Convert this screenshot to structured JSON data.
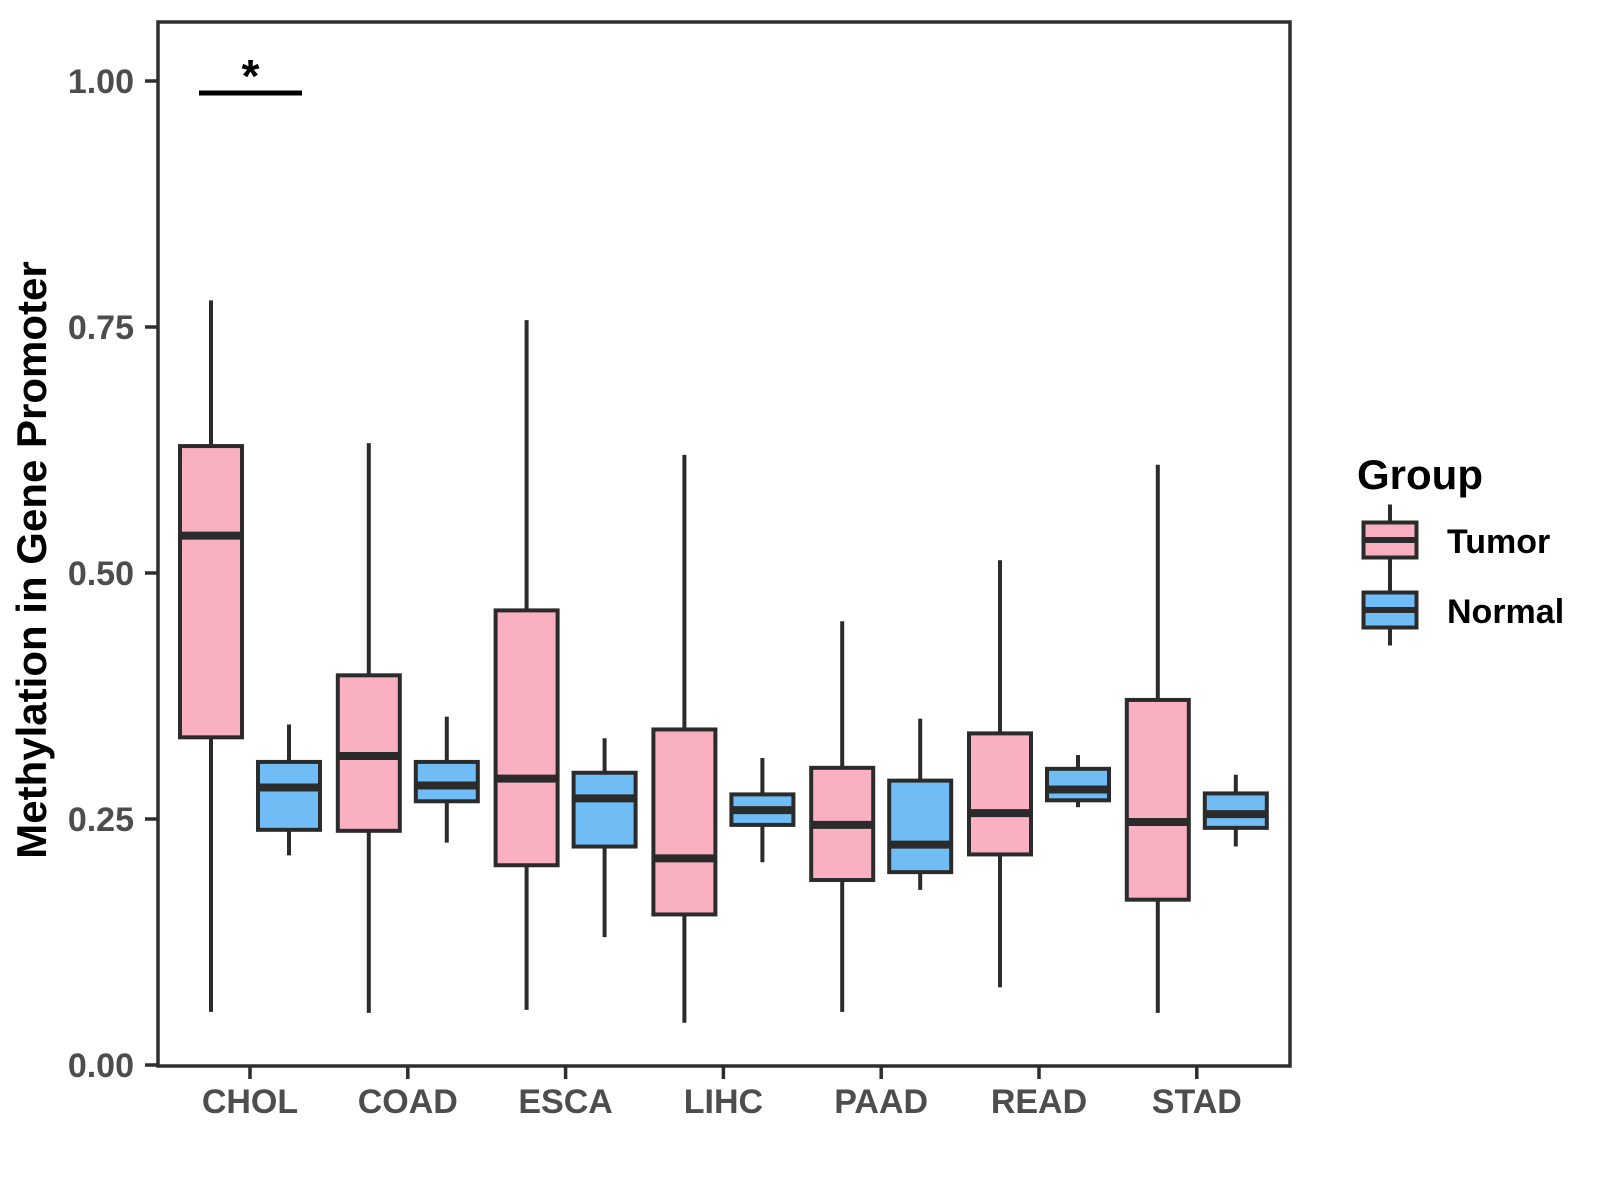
{
  "figure": {
    "background": "#FFFFFF",
    "y_axis": {
      "title": "Methylation in Gene Promoter",
      "tick_labels": [
        "0.00",
        "0.25",
        "0.50",
        "0.75",
        "1.00"
      ],
      "tick_values": [
        0,
        0.25,
        0.5,
        0.75,
        1.0
      ]
    },
    "x_axis": {
      "categories": [
        "CHOL",
        "COAD",
        "ESCA",
        "LIHC",
        "PAAD",
        "READ",
        "STAD"
      ]
    },
    "legend": {
      "title": "Group",
      "items": [
        {
          "label": "Tumor",
          "color": "#F9B1C2"
        },
        {
          "label": "Normal",
          "color": "#6FBDF4"
        }
      ]
    },
    "annotation": {
      "label": "*",
      "category": "CHOL"
    }
  },
  "chart_data": {
    "type": "boxplot",
    "title": "",
    "xlabel": "",
    "ylabel": "Methylation in Gene Promoter",
    "categories": [
      "CHOL",
      "COAD",
      "ESCA",
      "LIHC",
      "PAAD",
      "READ",
      "STAD"
    ],
    "ylim": [
      0,
      1.06
    ],
    "yticks": [
      0,
      0.25,
      0.5,
      0.75,
      1.0
    ],
    "ytick_labels": [
      "0.00",
      "0.25",
      "0.50",
      "0.75",
      "1.00"
    ],
    "grid": false,
    "legend_position": "right",
    "legend_title": "Group",
    "series": [
      {
        "name": "Tumor",
        "color": "#F9B1C2",
        "boxes": [
          {
            "category": "CHOL",
            "whisker_low": 0.054,
            "q1": 0.333,
            "median": 0.538,
            "q3": 0.629,
            "whisker_high": 0.777
          },
          {
            "category": "COAD",
            "whisker_low": 0.053,
            "q1": 0.238,
            "median": 0.314,
            "q3": 0.396,
            "whisker_high": 0.632
          },
          {
            "category": "ESCA",
            "whisker_low": 0.056,
            "q1": 0.203,
            "median": 0.291,
            "q3": 0.462,
            "whisker_high": 0.757
          },
          {
            "category": "LIHC",
            "whisker_low": 0.043,
            "q1": 0.153,
            "median": 0.21,
            "q3": 0.341,
            "whisker_high": 0.62
          },
          {
            "category": "PAAD",
            "whisker_low": 0.054,
            "q1": 0.188,
            "median": 0.244,
            "q3": 0.302,
            "whisker_high": 0.451
          },
          {
            "category": "READ",
            "whisker_low": 0.079,
            "q1": 0.214,
            "median": 0.256,
            "q3": 0.337,
            "whisker_high": 0.513
          },
          {
            "category": "STAD",
            "whisker_low": 0.053,
            "q1": 0.168,
            "median": 0.247,
            "q3": 0.371,
            "whisker_high": 0.61
          }
        ]
      },
      {
        "name": "Normal",
        "color": "#6FBDF4",
        "boxes": [
          {
            "category": "CHOL",
            "whisker_low": 0.213,
            "q1": 0.239,
            "median": 0.282,
            "q3": 0.308,
            "whisker_high": 0.346
          },
          {
            "category": "COAD",
            "whisker_low": 0.226,
            "q1": 0.268,
            "median": 0.284,
            "q3": 0.308,
            "whisker_high": 0.354
          },
          {
            "category": "ESCA",
            "whisker_low": 0.13,
            "q1": 0.222,
            "median": 0.271,
            "q3": 0.297,
            "whisker_high": 0.332
          },
          {
            "category": "LIHC",
            "whisker_low": 0.206,
            "q1": 0.244,
            "median": 0.259,
            "q3": 0.275,
            "whisker_high": 0.312
          },
          {
            "category": "PAAD",
            "whisker_low": 0.178,
            "q1": 0.196,
            "median": 0.224,
            "q3": 0.289,
            "whisker_high": 0.352
          },
          {
            "category": "READ",
            "whisker_low": 0.262,
            "q1": 0.269,
            "median": 0.28,
            "q3": 0.301,
            "whisker_high": 0.315
          },
          {
            "category": "STAD",
            "whisker_low": 0.222,
            "q1": 0.241,
            "median": 0.255,
            "q3": 0.276,
            "whisker_high": 0.295
          }
        ]
      }
    ],
    "annotations": [
      {
        "type": "significance",
        "label": "*",
        "category": "CHOL",
        "between": [
          "Tumor",
          "Normal"
        ],
        "bar_y": 0.988
      }
    ],
    "styles": {
      "box_border_color": "#2B2B2B",
      "median_color": "#2B2B2B",
      "whisker_color": "#2B2B2B",
      "panel_border_color": "#2E2E2E",
      "axis_text_color": "#4D4D4D",
      "title_text_color": "#000000"
    }
  }
}
